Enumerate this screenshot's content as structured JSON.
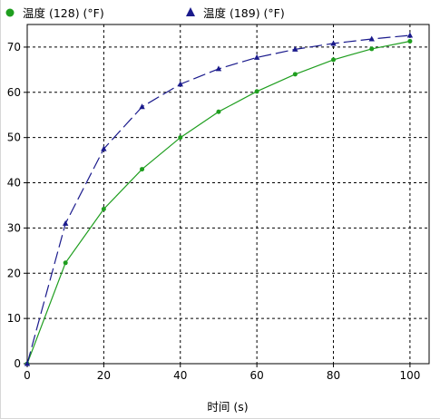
{
  "chart_data": {
    "type": "line",
    "xlabel": "时间 (s)",
    "ylabel": "",
    "xlim": [
      0,
      105
    ],
    "ylim": [
      0,
      75
    ],
    "x_ticks": [
      0,
      20,
      40,
      60,
      80,
      100
    ],
    "y_ticks": [
      0,
      10,
      20,
      30,
      40,
      50,
      60,
      70
    ],
    "grid": true,
    "legend_position": "top",
    "series": [
      {
        "name": "温度 (128) (°F)",
        "color": "#1f9e1f",
        "marker": "circle",
        "line_style": "solid",
        "x": [
          0,
          10,
          20,
          30,
          40,
          50,
          60,
          70,
          80,
          90,
          100
        ],
        "y": [
          0,
          22.3,
          34.2,
          43.0,
          50.0,
          55.7,
          60.2,
          64.0,
          67.2,
          69.6,
          71.3
        ]
      },
      {
        "name": "温度  (189) (°F)",
        "color": "#1a1a8c",
        "marker": "triangle",
        "line_style": "dashed",
        "x": [
          0,
          10,
          20,
          30,
          40,
          50,
          60,
          70,
          80,
          90,
          100
        ],
        "y": [
          0,
          31.0,
          47.5,
          56.8,
          61.8,
          65.2,
          67.7,
          69.5,
          70.8,
          71.8,
          72.6
        ]
      }
    ]
  }
}
